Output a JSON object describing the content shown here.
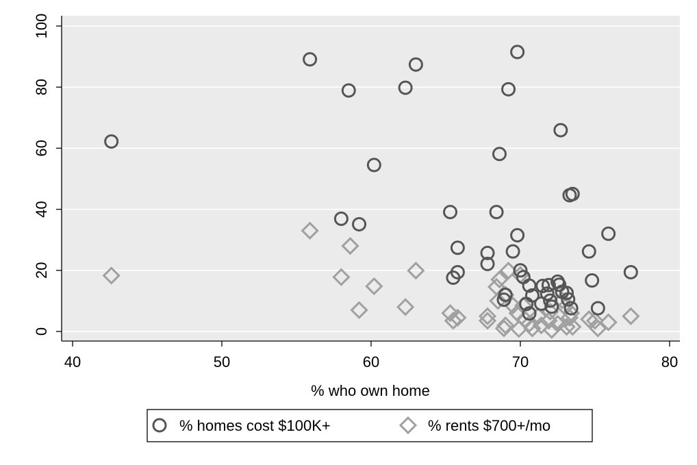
{
  "chart_data": {
    "type": "scatter",
    "xlabel": "% who own home",
    "ylabel": "",
    "xlim": [
      40,
      80
    ],
    "ylim": [
      0,
      100
    ],
    "xticks": [
      "40",
      "50",
      "60",
      "70",
      "80"
    ],
    "yticks": [
      "0",
      "20",
      "40",
      "60",
      "80",
      "100"
    ],
    "grid": "horizontal",
    "legend_position": "bottom",
    "colors": {
      "plot_bg": "#ebebeb",
      "homes": "#555555",
      "rents": "#a0a0a0",
      "grid": "#ffffff"
    },
    "series": [
      {
        "name": "% homes cost $100K+",
        "marker": "circle",
        "points": [
          [
            42.6,
            62.2
          ],
          [
            55.9,
            89.1
          ],
          [
            58.5,
            78.9
          ],
          [
            62.3,
            79.8
          ],
          [
            63.0,
            87.4
          ],
          [
            69.8,
            91.5
          ],
          [
            69.2,
            79.3
          ],
          [
            72.7,
            65.9
          ],
          [
            60.2,
            54.5
          ],
          [
            68.6,
            58.1
          ],
          [
            73.5,
            45.0
          ],
          [
            73.3,
            44.6
          ],
          [
            65.3,
            39.1
          ],
          [
            68.4,
            39.1
          ],
          [
            58.0,
            36.9
          ],
          [
            59.2,
            35.1
          ],
          [
            69.8,
            31.5
          ],
          [
            75.9,
            32.0
          ],
          [
            65.8,
            27.4
          ],
          [
            67.8,
            25.7
          ],
          [
            69.5,
            26.2
          ],
          [
            74.6,
            26.2
          ],
          [
            67.8,
            22.1
          ],
          [
            70.0,
            20.0
          ],
          [
            77.4,
            19.4
          ],
          [
            65.8,
            19.4
          ],
          [
            65.5,
            17.6
          ],
          [
            74.8,
            16.7
          ],
          [
            70.2,
            17.8
          ],
          [
            70.6,
            15.0
          ],
          [
            71.5,
            14.9
          ],
          [
            71.9,
            15.2
          ],
          [
            72.5,
            16.3
          ],
          [
            72.6,
            15.3
          ],
          [
            73.1,
            12.6
          ],
          [
            70.8,
            11.8
          ],
          [
            69.0,
            12.0
          ],
          [
            68.9,
            10.4
          ],
          [
            70.4,
            9.0
          ],
          [
            71.4,
            9.1
          ],
          [
            72.0,
            10.1
          ],
          [
            73.2,
            10.5
          ],
          [
            72.1,
            8.1
          ],
          [
            73.4,
            7.6
          ],
          [
            70.6,
            5.9
          ],
          [
            75.2,
            7.6
          ],
          [
            71.8,
            12.4
          ],
          [
            72.8,
            13.0
          ]
        ]
      },
      {
        "name": "% rents $700+/mo",
        "marker": "diamond",
        "points": [
          [
            42.6,
            18.3
          ],
          [
            55.9,
            33.0
          ],
          [
            58.0,
            17.8
          ],
          [
            58.6,
            28.0
          ],
          [
            59.2,
            7.0
          ],
          [
            60.2,
            14.8
          ],
          [
            62.3,
            8.0
          ],
          [
            63.0,
            19.9
          ],
          [
            65.3,
            6.0
          ],
          [
            65.5,
            3.5
          ],
          [
            65.8,
            4.5
          ],
          [
            67.8,
            5.0
          ],
          [
            67.8,
            3.5
          ],
          [
            68.4,
            14.6
          ],
          [
            68.6,
            17.0
          ],
          [
            68.9,
            1.0
          ],
          [
            69.0,
            2.0
          ],
          [
            69.2,
            19.9
          ],
          [
            69.5,
            8.5
          ],
          [
            69.8,
            6.0
          ],
          [
            69.9,
            0.8
          ],
          [
            70.0,
            18.5
          ],
          [
            70.3,
            4.0
          ],
          [
            70.6,
            2.5
          ],
          [
            70.8,
            1.0
          ],
          [
            71.4,
            2.0
          ],
          [
            71.9,
            3.5
          ],
          [
            72.1,
            0.5
          ],
          [
            72.5,
            2.5
          ],
          [
            72.8,
            10.2
          ],
          [
            73.1,
            1.5
          ],
          [
            73.3,
            4.5
          ],
          [
            73.4,
            6.0
          ],
          [
            73.5,
            1.5
          ],
          [
            74.6,
            4.0
          ],
          [
            75.0,
            3.5
          ],
          [
            75.2,
            1.0
          ],
          [
            75.9,
            3.0
          ],
          [
            77.4,
            5.0
          ],
          [
            70.2,
            8.5
          ],
          [
            71.2,
            5.0
          ],
          [
            72.0,
            6.5
          ],
          [
            73.0,
            8.0
          ],
          [
            69.0,
            12.0
          ],
          [
            68.5,
            10.0
          ]
        ]
      }
    ]
  }
}
